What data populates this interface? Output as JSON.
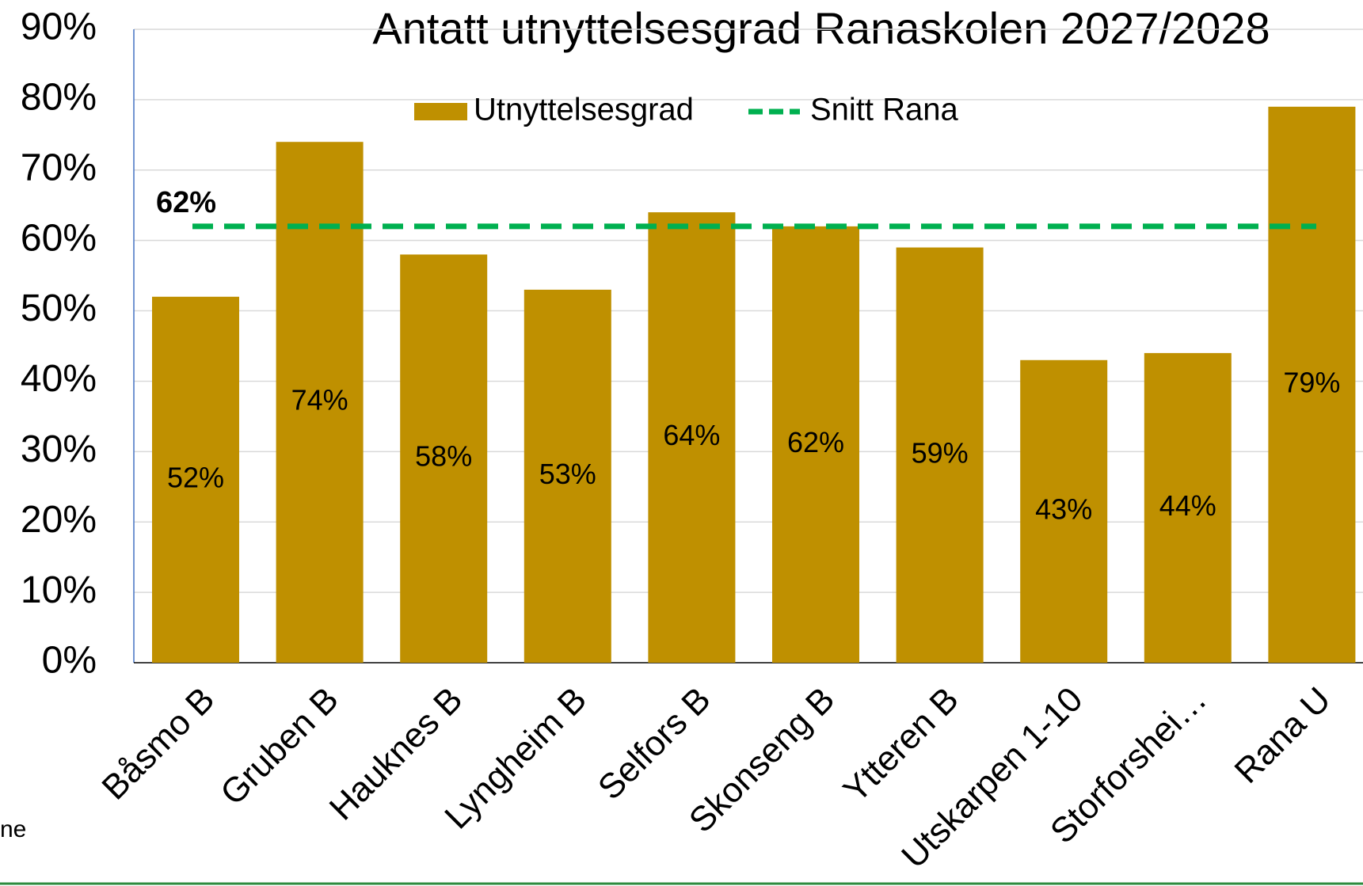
{
  "chart_data": {
    "type": "bar",
    "title": "Antatt utnyttelsesgrad Ranaskolen 2027/2028",
    "categories": [
      "Båsmo B",
      "Gruben B",
      "Hauknes B",
      "Lyngheim B",
      "Selfors B",
      "Skonseng B",
      "Ytteren B",
      "Utskarpen 1-10",
      "Storforshei…",
      "Rana U"
    ],
    "series": [
      {
        "name": "Utnyttelsesgrad",
        "color": "#bf9000",
        "values": [
          52,
          74,
          58,
          53,
          64,
          62,
          59,
          43,
          44,
          79
        ],
        "value_labels": [
          "52%",
          "74%",
          "58%",
          "53%",
          "64%",
          "62%",
          "59%",
          "43%",
          "44%",
          "79%"
        ]
      }
    ],
    "reference_line": {
      "name": "Snitt Rana",
      "color": "#00b050",
      "value": 62,
      "value_label": "62%"
    },
    "ylim": [
      0,
      90
    ],
    "yticks": [
      {
        "value": 0,
        "label": "0%"
      },
      {
        "value": 10,
        "label": "10%"
      },
      {
        "value": 20,
        "label": "20%"
      },
      {
        "value": 30,
        "label": "30%"
      },
      {
        "value": 40,
        "label": "40%"
      },
      {
        "value": 50,
        "label": "50%"
      },
      {
        "value": 60,
        "label": "60%"
      },
      {
        "value": 70,
        "label": "70%"
      },
      {
        "value": 80,
        "label": "80%"
      },
      {
        "value": 90,
        "label": "90%"
      }
    ],
    "grid": true
  },
  "footer_fragment": "ne"
}
